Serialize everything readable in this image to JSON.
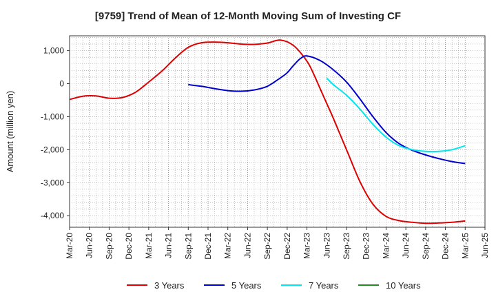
{
  "chart_data": {
    "type": "line",
    "title": "[9759]  Trend of Mean of 12-Month Moving Sum of Investing CF",
    "xlabel": "",
    "ylabel": "Amount (million yen)",
    "ylim": [
      -4350,
      1450
    ],
    "y_ticks": [
      1000,
      0,
      -1000,
      -2000,
      -3000,
      -4000
    ],
    "y_tick_labels": [
      "1,000",
      "0",
      "-1,000",
      "-2,000",
      "-3,000",
      "-4,000"
    ],
    "x_tick_labels": [
      "Mar-20",
      "Jun-20",
      "Sep-20",
      "Dec-20",
      "Mar-21",
      "Jun-21",
      "Sep-21",
      "Dec-21",
      "Mar-22",
      "Jun-22",
      "Sep-22",
      "Dec-22",
      "Mar-23",
      "Jun-23",
      "Sep-23",
      "Dec-23",
      "Mar-24",
      "Jun-24",
      "Sep-24",
      "Dec-24",
      "Mar-25",
      "Jun-25"
    ],
    "grid": true,
    "legend_position": "bottom",
    "x_unit": "month index (0 = Mar-20)",
    "series": [
      {
        "name": "3 Years",
        "color": "#dd0000",
        "x": [
          0,
          2,
          4,
          6,
          8,
          10,
          12,
          14,
          16,
          18,
          20,
          22,
          24,
          26,
          28,
          30,
          32,
          34,
          36,
          37,
          38,
          39,
          40,
          42,
          44,
          46,
          48,
          50,
          52,
          54,
          56,
          58,
          60
        ],
        "y": [
          -480,
          -380,
          -370,
          -440,
          -420,
          -260,
          50,
          380,
          770,
          1100,
          1240,
          1260,
          1240,
          1200,
          1190,
          1230,
          1320,
          1150,
          680,
          300,
          -150,
          -600,
          -1050,
          -2000,
          -2950,
          -3650,
          -4020,
          -4150,
          -4200,
          -4230,
          -4220,
          -4200,
          -4160
        ]
      },
      {
        "name": "5 Years",
        "color": "#0000cc",
        "x": [
          18,
          20,
          22,
          24,
          26,
          28,
          30,
          32,
          33,
          34,
          35,
          36,
          38,
          40,
          42,
          44,
          46,
          48,
          50,
          52,
          54,
          56,
          58,
          60
        ],
        "y": [
          -30,
          -80,
          -150,
          -210,
          -230,
          -190,
          -80,
          180,
          330,
          560,
          760,
          840,
          700,
          420,
          50,
          -450,
          -1000,
          -1480,
          -1820,
          -2020,
          -2160,
          -2270,
          -2360,
          -2420
        ]
      },
      {
        "name": "7 Years",
        "color": "#00e5ee",
        "x": [
          39,
          40,
          42,
          44,
          46,
          48,
          50,
          52,
          54,
          56,
          58,
          60
        ],
        "y": [
          170,
          -30,
          -350,
          -760,
          -1230,
          -1620,
          -1880,
          -2000,
          -2050,
          -2050,
          -2000,
          -1880
        ]
      },
      {
        "name": "10 Years",
        "color": "#228b22",
        "x": [],
        "y": []
      }
    ]
  }
}
